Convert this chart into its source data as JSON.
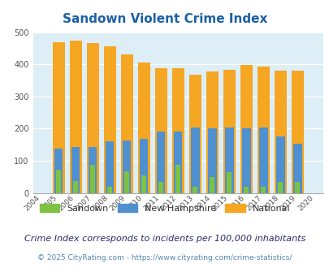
{
  "title": "Sandown Violent Crime Index",
  "years": [
    2004,
    2005,
    2006,
    2007,
    2008,
    2009,
    2010,
    2011,
    2012,
    2013,
    2014,
    2015,
    2016,
    2017,
    2018,
    2019,
    2020
  ],
  "sandown": [
    0,
    73,
    38,
    87,
    18,
    68,
    55,
    35,
    87,
    18,
    50,
    65,
    18,
    18,
    35,
    35,
    0
  ],
  "new_hampshire": [
    0,
    138,
    143,
    143,
    160,
    163,
    168,
    190,
    190,
    203,
    200,
    203,
    200,
    203,
    175,
    152,
    0
  ],
  "national": [
    0,
    469,
    474,
    467,
    455,
    432,
    405,
    389,
    387,
    368,
    377,
    383,
    398,
    394,
    381,
    381,
    0
  ],
  "sandown_color": "#7dc242",
  "nh_color": "#4e90d0",
  "national_color": "#f5a623",
  "bg_color": "#ddeef6",
  "fig_bg": "#ffffff",
  "ylim": [
    0,
    500
  ],
  "yticks": [
    0,
    100,
    200,
    300,
    400,
    500
  ],
  "subtitle": "Crime Index corresponds to incidents per 100,000 inhabitants",
  "footer": "© 2025 CityRating.com - https://www.cityrating.com/crime-statistics/",
  "title_color": "#1a5fa8",
  "subtitle_color": "#2a2a6e",
  "footer_color": "#5588aa",
  "legend_text_color": "#333333"
}
